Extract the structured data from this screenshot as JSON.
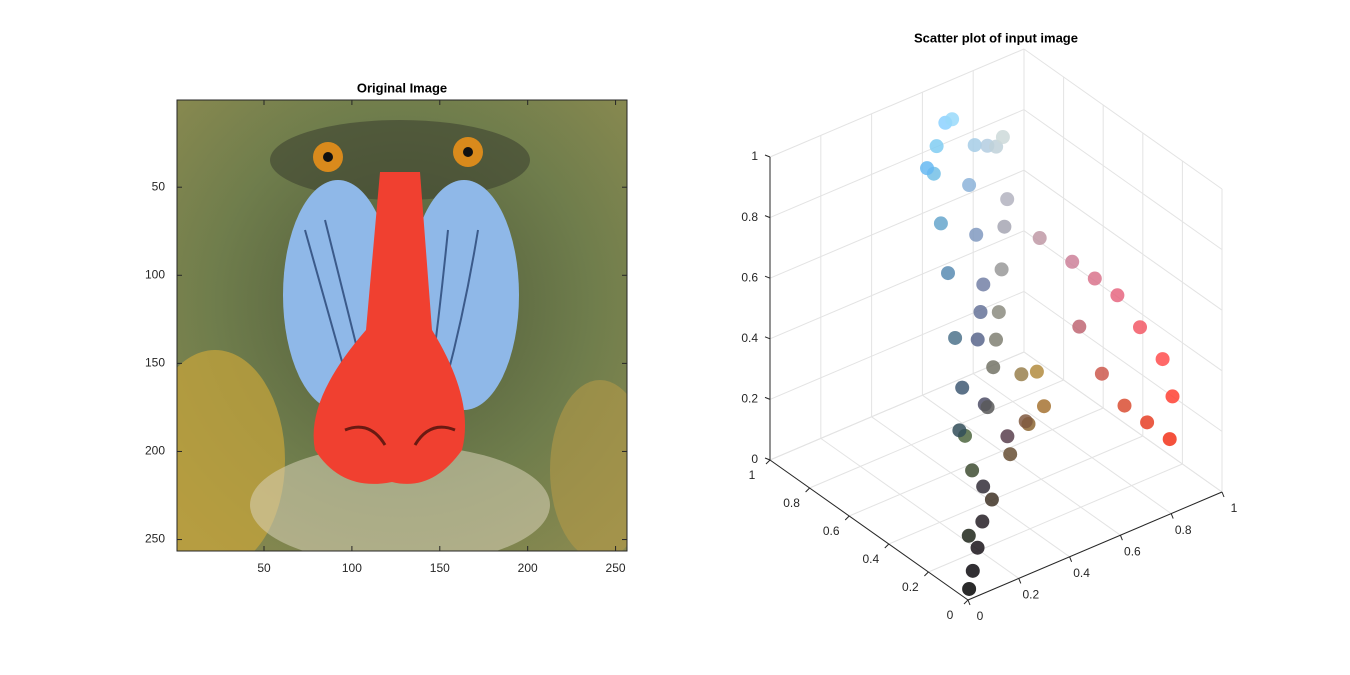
{
  "chart_data": [
    {
      "type": "image",
      "title": "Original Image",
      "xlim": [
        0.5,
        256.5
      ],
      "ylim": [
        0.5,
        256.5
      ],
      "y_reversed": true,
      "xticks": [
        50,
        100,
        150,
        200,
        250
      ],
      "yticks": [
        50,
        100,
        150,
        200,
        250
      ]
    },
    {
      "type": "scatter3",
      "title": "Scatter plot of input image",
      "xlim": [
        0,
        1
      ],
      "ylim": [
        0,
        1
      ],
      "zlim": [
        0,
        1
      ],
      "xticks": [
        0,
        0.2,
        0.4,
        0.6,
        0.8,
        1
      ],
      "yticks": [
        0,
        0.2,
        0.4,
        0.6,
        0.8,
        1
      ],
      "zticks": [
        0,
        0.2,
        0.4,
        0.6,
        0.8,
        1
      ],
      "grid": true,
      "color_by_coordinates": true,
      "x": [
        0.02,
        0.05,
        0.1,
        0.15,
        0.2,
        0.12,
        0.25,
        0.3,
        0.2,
        0.25,
        0.3,
        0.35,
        0.4,
        0.45,
        0.5,
        0.4,
        0.55,
        0.6,
        0.65,
        0.7,
        0.75,
        0.8,
        0.35,
        0.4,
        0.45,
        0.3,
        0.35,
        0.45,
        0.5,
        0.55,
        0.6,
        0.7,
        0.65,
        0.55,
        0.5,
        0.4,
        0.6,
        0.65,
        0.7,
        0.75,
        0.8,
        0.85,
        0.9,
        0.95,
        1,
        1,
        0.95,
        0.9,
        0.85,
        0.8,
        0.75,
        0.25,
        0.35,
        0.5,
        0.55
      ],
      "y": [
        0.02,
        0.04,
        0.08,
        0.12,
        0.18,
        0.15,
        0.3,
        0.4,
        0.3,
        0.35,
        0.45,
        0.55,
        0.65,
        0.75,
        0.8,
        0.72,
        0.82,
        0.85,
        0.8,
        0.8,
        0.82,
        0.85,
        0.4,
        0.45,
        0.5,
        0.3,
        0.35,
        0.45,
        0.5,
        0.55,
        0.5,
        0.55,
        0.45,
        0.4,
        0.35,
        0.3,
        0.6,
        0.65,
        0.7,
        0.6,
        0.5,
        0.45,
        0.4,
        0.35,
        0.3,
        0.25,
        0.2,
        0.25,
        0.3,
        0.35,
        0.4,
        0.2,
        0.25,
        0.6,
        0.7
      ],
      "z": [
        0.02,
        0.06,
        0.1,
        0.15,
        0.22,
        0.1,
        0.2,
        0.25,
        0.35,
        0.45,
        0.55,
        0.7,
        0.8,
        0.9,
        0.95,
        0.95,
        1,
        0.98,
        0.9,
        0.88,
        0.85,
        0.85,
        0.55,
        0.6,
        0.65,
        0.4,
        0.35,
        0.4,
        0.45,
        0.5,
        0.3,
        0.25,
        0.2,
        0.2,
        0.25,
        0.2,
        0.6,
        0.7,
        0.75,
        0.65,
        0.6,
        0.55,
        0.5,
        0.4,
        0.3,
        0.2,
        0.1,
        0.15,
        0.2,
        0.3,
        0.45,
        0.15,
        0.3,
        0.75,
        0.85
      ]
    }
  ]
}
